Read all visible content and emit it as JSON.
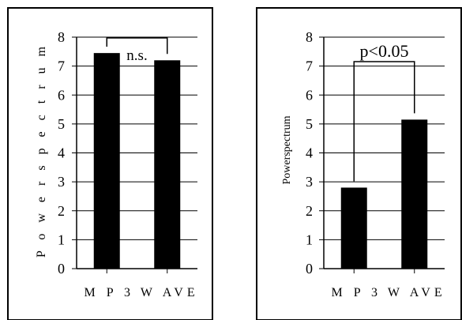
{
  "chart_data": [
    {
      "type": "bar",
      "title": "",
      "xlabel": "",
      "ylabel": "Powerspectrum",
      "ylabel_display": "P o w e r  s p e c t r u m",
      "categories": [
        "M P 3",
        "W AVE"
      ],
      "values": [
        7.45,
        7.2
      ],
      "ylim": [
        0,
        8
      ],
      "yticks": [
        "0",
        "1",
        "2",
        "3",
        "4",
        "5",
        "6",
        "7",
        "8"
      ],
      "grid": true,
      "bar_color": "#000000",
      "annotation": {
        "text": "n.s.",
        "between": [
          0,
          1
        ]
      }
    },
    {
      "type": "bar",
      "title": "",
      "xlabel": "",
      "ylabel": "Powerspectrum",
      "ylabel_display": "Powerspectrum",
      "categories": [
        "M P 3",
        "W AVE"
      ],
      "values": [
        2.8,
        5.15
      ],
      "ylim": [
        0,
        8
      ],
      "yticks": [
        "0",
        "1",
        "2",
        "3",
        "4",
        "5",
        "6",
        "7",
        "8"
      ],
      "grid": true,
      "bar_color": "#000000",
      "annotation": {
        "text": "p<0.05",
        "between": [
          0,
          1
        ]
      }
    }
  ]
}
